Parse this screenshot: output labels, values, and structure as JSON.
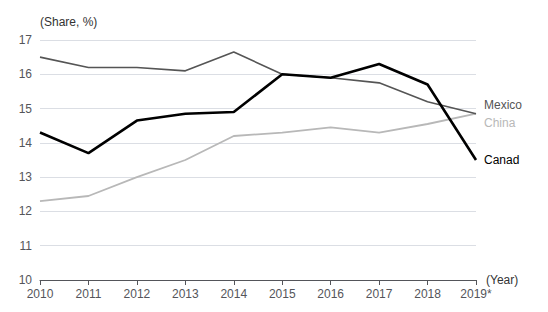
{
  "chart_data": {
    "type": "line",
    "categories": [
      "2010",
      "2011",
      "2012",
      "2013",
      "2014",
      "2015",
      "2016",
      "2017",
      "2018",
      "2019*"
    ],
    "series": [
      {
        "name": "Mexico",
        "color": "#555555",
        "values": [
          16.5,
          16.2,
          16.2,
          16.1,
          16.65,
          16.0,
          15.9,
          15.75,
          15.2,
          14.85
        ]
      },
      {
        "name": "Canad",
        "color": "#000000",
        "values": [
          14.3,
          13.7,
          14.65,
          14.85,
          14.9,
          16.0,
          15.9,
          16.3,
          15.7,
          13.5
        ]
      },
      {
        "name": "China",
        "color": "#b8b8b8",
        "values": [
          12.3,
          12.45,
          13.0,
          13.5,
          14.2,
          14.3,
          14.45,
          14.3,
          14.55,
          14.85
        ]
      }
    ],
    "ylabel": "(Share, %)",
    "xlabel": "(Year)",
    "ylim": [
      10,
      17
    ],
    "yticks": [
      10,
      11,
      12,
      13,
      14,
      15,
      16,
      17
    ],
    "grid": true
  }
}
